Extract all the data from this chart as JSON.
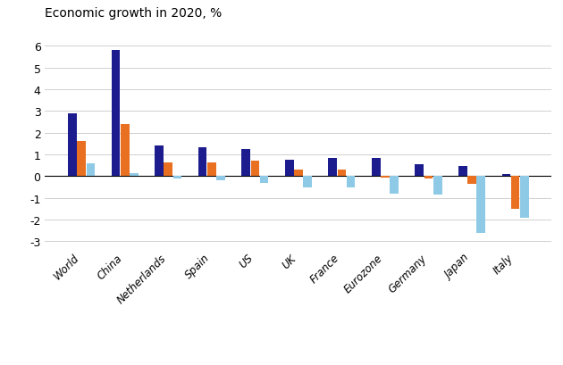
{
  "title": "Economic growth in 2020, %",
  "categories": [
    "World",
    "China",
    "Netherlands",
    "Spain",
    "US",
    "UK",
    "France",
    "Eurozone",
    "Germany",
    "Japan",
    "Italy"
  ],
  "series": {
    "no_covid": [
      2.9,
      5.8,
      1.4,
      1.35,
      1.25,
      0.75,
      0.85,
      0.85,
      0.55,
      0.45,
      0.1
    ],
    "base_case": [
      1.6,
      2.4,
      0.65,
      0.65,
      0.7,
      0.3,
      0.3,
      -0.05,
      -0.1,
      -0.35,
      -1.5
    ],
    "risk_scenario": [
      0.6,
      0.15,
      -0.1,
      -0.2,
      -0.3,
      -0.5,
      -0.5,
      -0.8,
      -0.85,
      -2.6,
      -1.9
    ]
  },
  "colors": {
    "no_covid": "#1c1c8f",
    "base_case": "#e87020",
    "risk_scenario": "#8ecae6"
  },
  "ylim": [
    -3.3,
    6.8
  ],
  "yticks": [
    -3,
    -2,
    -1,
    0,
    1,
    2,
    3,
    4,
    5,
    6
  ],
  "background_color": "#ffffff",
  "grid_color": "#d0d0d0"
}
